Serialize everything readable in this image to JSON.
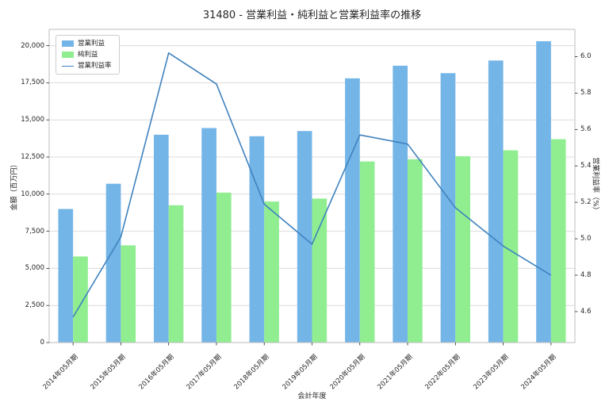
{
  "title": "31480 - 営業利益・純利益と営業利益率の推移",
  "chart_data": {
    "type": "bar+line",
    "categories": [
      "2014年05月期",
      "2015年05月期",
      "2016年05月期",
      "2017年05月期",
      "2018年05月期",
      "2019年05月期",
      "2020年05月期",
      "2021年05月期",
      "2022年05月期",
      "2023年05月期",
      "2024年05月期"
    ],
    "series": [
      {
        "name": "営業利益",
        "type": "bar",
        "axis": "left",
        "color": "#74b5e8",
        "values": [
          9000,
          10700,
          14000,
          14450,
          13900,
          14250,
          17800,
          18650,
          18150,
          19000,
          20300
        ]
      },
      {
        "name": "純利益",
        "type": "bar",
        "axis": "left",
        "color": "#90ee90",
        "values": [
          5800,
          6550,
          9250,
          10100,
          9500,
          9700,
          12200,
          12350,
          12550,
          12950,
          13700
        ]
      },
      {
        "name": "営業利益率",
        "type": "line",
        "axis": "right",
        "color": "#3f82be",
        "values": [
          4.57,
          5.01,
          6.02,
          5.85,
          5.19,
          4.97,
          5.57,
          5.52,
          5.17,
          4.96,
          4.8
        ]
      }
    ],
    "xlabel": "会計年度",
    "ylabel_left": "金額（百万円）",
    "ylabel_right": "営業利益率（%）",
    "yticks_left": [
      0,
      2500,
      5000,
      7500,
      10000,
      12500,
      15000,
      17500,
      20000
    ],
    "yticks_right": [
      4.6,
      4.8,
      5.0,
      5.2,
      5.4,
      5.6,
      5.8,
      6.0
    ],
    "ylim_left": [
      0,
      21100
    ],
    "ylim_right": [
      4.43,
      6.15
    ],
    "grid": "horizontal",
    "legend_position": "top-left",
    "grid_color": "#dcdcdc",
    "border_color": "#bcbcbc",
    "text_color": "#262626"
  }
}
